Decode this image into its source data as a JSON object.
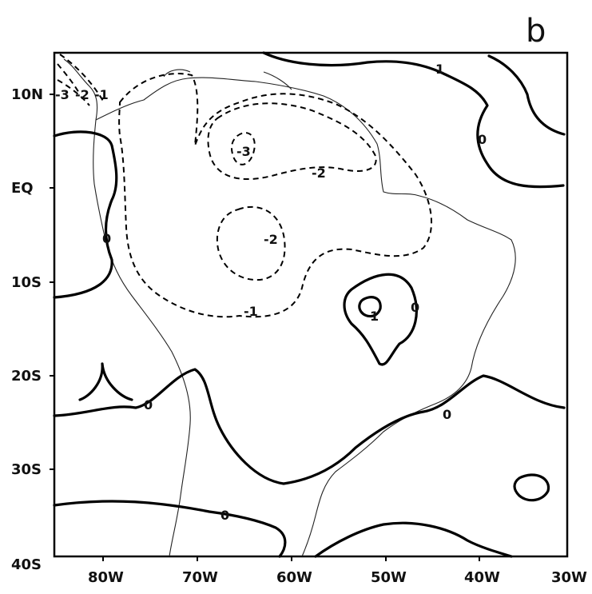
{
  "panel_label": "b",
  "axes": {
    "x_ticks": [
      "80W",
      "70W",
      "60W",
      "50W",
      "40W",
      "30W"
    ],
    "y_ticks": [
      "10N",
      "EQ",
      "10S",
      "20S",
      "30S",
      "40S"
    ]
  },
  "contour_labels": {
    "nw_minus3": "-3",
    "nw_minus2": "-2",
    "nw_minus1": "-1",
    "ne_one": "1",
    "ne_zero": "0",
    "upper_minus3": "-3",
    "upper_minus2": "-2",
    "west_zero": "0",
    "center_minus2": "-2",
    "center_minus1": "-1",
    "east_one": "1",
    "east_zero": "0",
    "sw_zero": "0",
    "se_zero": "0",
    "south_zero": "0"
  },
  "colors": {
    "line": "#000000",
    "background": "#ffffff"
  }
}
